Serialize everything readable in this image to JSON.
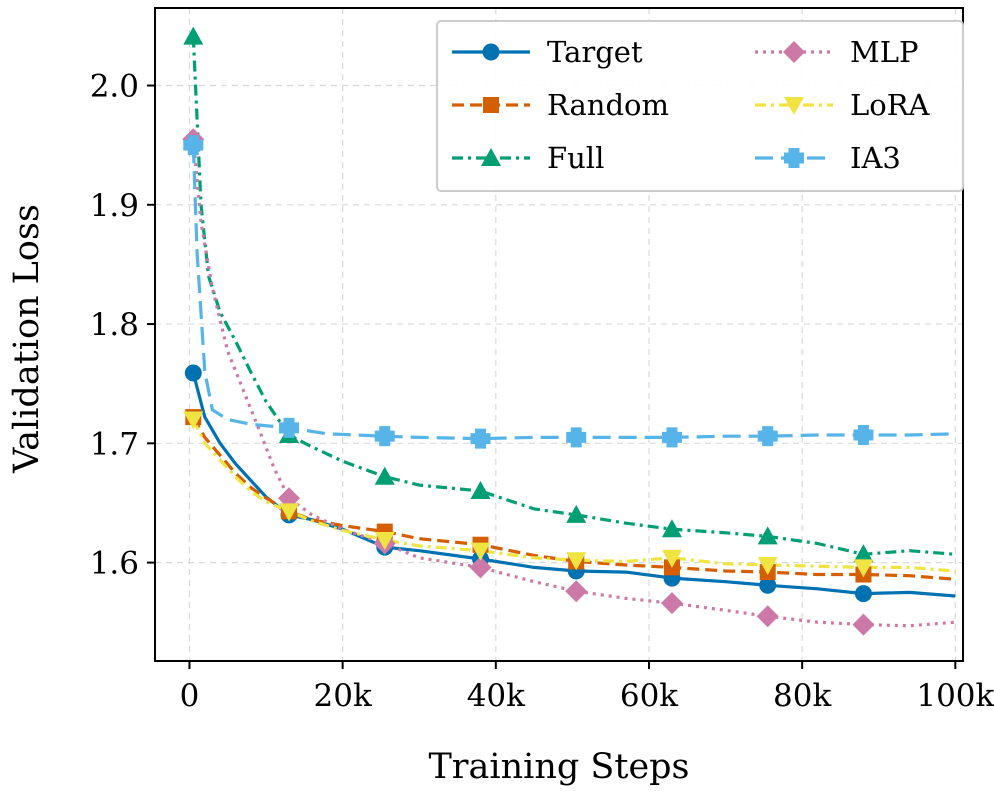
{
  "chart_data": {
    "type": "line",
    "xlabel": "Training Steps",
    "ylabel": "Validation Loss",
    "xlim": [
      -4500,
      101000
    ],
    "ylim": [
      1.5175,
      2.065
    ],
    "xticks": [
      0,
      20000,
      40000,
      60000,
      80000,
      100000
    ],
    "xtick_labels": [
      "0",
      "20k",
      "40k",
      "60k",
      "80k",
      "100k"
    ],
    "yticks": [
      1.6,
      1.7,
      1.8,
      1.9,
      2.0
    ],
    "ytick_labels": [
      "1.6",
      "1.7",
      "1.8",
      "1.9",
      "2.0"
    ],
    "grid": true,
    "legend": {
      "position": "top-right",
      "columns": 2
    },
    "series": [
      {
        "name": "Target",
        "color": "#0072b2",
        "marker": "circle",
        "dash": "solid",
        "x": [
          500,
          2000,
          4000,
          6000,
          8000,
          10000,
          13000,
          16000,
          20000,
          25500,
          30000,
          38000,
          45000,
          50500,
          57000,
          63000,
          70000,
          75500,
          82000,
          88000,
          94000,
          100000
        ],
        "y": [
          1.759,
          1.722,
          1.7,
          1.683,
          1.669,
          1.655,
          1.64,
          1.636,
          1.628,
          1.613,
          1.61,
          1.603,
          1.596,
          1.593,
          1.592,
          1.587,
          1.584,
          1.581,
          1.578,
          1.574,
          1.575,
          1.572
        ],
        "markers_x": [
          500,
          13000,
          25500,
          38000,
          50500,
          63000,
          75500,
          88000
        ]
      },
      {
        "name": "Random",
        "color": "#d55e00",
        "marker": "square",
        "dash": "dashed",
        "x": [
          500,
          2000,
          4000,
          6000,
          8000,
          10000,
          13000,
          16000,
          20000,
          25500,
          30000,
          38000,
          45000,
          50500,
          57000,
          63000,
          70000,
          75500,
          82000,
          88000,
          94000,
          100000
        ],
        "y": [
          1.722,
          1.705,
          1.69,
          1.675,
          1.663,
          1.654,
          1.643,
          1.636,
          1.631,
          1.626,
          1.62,
          1.615,
          1.606,
          1.601,
          1.598,
          1.596,
          1.593,
          1.592,
          1.59,
          1.59,
          1.589,
          1.586
        ],
        "markers_x": [
          500,
          13000,
          25500,
          38000,
          50500,
          63000,
          75500,
          88000
        ]
      },
      {
        "name": "Full",
        "color": "#009e73",
        "marker": "triangle",
        "dash": "dashdot",
        "x": [
          500,
          1500,
          2500,
          4000,
          6000,
          8000,
          10000,
          13000,
          16000,
          20000,
          25500,
          30000,
          38000,
          45000,
          50500,
          57000,
          63000,
          70000,
          75500,
          82000,
          88000,
          94000,
          100000
        ],
        "y": [
          2.041,
          1.9,
          1.84,
          1.81,
          1.786,
          1.76,
          1.735,
          1.707,
          1.697,
          1.685,
          1.672,
          1.665,
          1.66,
          1.645,
          1.64,
          1.633,
          1.628,
          1.625,
          1.622,
          1.616,
          1.607,
          1.61,
          1.607
        ],
        "markers_x": [
          500,
          13000,
          25500,
          38000,
          50500,
          63000,
          75500,
          88000
        ]
      },
      {
        "name": "MLP",
        "color": "#cc79a7",
        "marker": "diamond",
        "dash": "dotted",
        "x": [
          500,
          1500,
          3000,
          5000,
          7000,
          9000,
          11000,
          13000,
          16000,
          20000,
          25500,
          30000,
          38000,
          45000,
          50500,
          57000,
          63000,
          70000,
          75500,
          82000,
          88000,
          94000,
          100000
        ],
        "y": [
          1.955,
          1.885,
          1.83,
          1.777,
          1.745,
          1.713,
          1.68,
          1.654,
          1.64,
          1.628,
          1.616,
          1.604,
          1.596,
          1.584,
          1.576,
          1.57,
          1.566,
          1.56,
          1.555,
          1.55,
          1.548,
          1.547,
          1.55
        ],
        "markers_x": [
          500,
          13000,
          25500,
          38000,
          50500,
          63000,
          75500,
          88000
        ]
      },
      {
        "name": "LoRA",
        "color": "#f0e442",
        "marker": "triangle-down",
        "dash": "dashdot",
        "x": [
          500,
          2000,
          4000,
          6000,
          8000,
          10000,
          13000,
          16000,
          20000,
          25500,
          30000,
          38000,
          45000,
          50500,
          57000,
          63000,
          70000,
          75500,
          82000,
          88000,
          94000,
          100000
        ],
        "y": [
          1.72,
          1.7,
          1.686,
          1.672,
          1.66,
          1.651,
          1.643,
          1.635,
          1.627,
          1.619,
          1.614,
          1.61,
          1.604,
          1.602,
          1.601,
          1.604,
          1.599,
          1.598,
          1.597,
          1.596,
          1.596,
          1.593
        ],
        "markers_x": [
          500,
          13000,
          25500,
          38000,
          50500,
          63000,
          75500,
          88000
        ]
      },
      {
        "name": "IA3",
        "color": "#56b4e9",
        "marker": "plus",
        "dash": "longdash",
        "x": [
          500,
          1000,
          2000,
          3000,
          5000,
          8000,
          13000,
          18000,
          25500,
          30000,
          38000,
          45000,
          50500,
          57000,
          63000,
          70000,
          75500,
          82000,
          88000,
          94000,
          100000
        ],
        "y": [
          1.95,
          1.86,
          1.76,
          1.728,
          1.72,
          1.716,
          1.713,
          1.708,
          1.706,
          1.705,
          1.704,
          1.705,
          1.705,
          1.705,
          1.705,
          1.706,
          1.706,
          1.707,
          1.707,
          1.707,
          1.708
        ],
        "markers_x": [
          500,
          13000,
          25500,
          38000,
          50500,
          63000,
          75500,
          88000
        ]
      }
    ]
  }
}
